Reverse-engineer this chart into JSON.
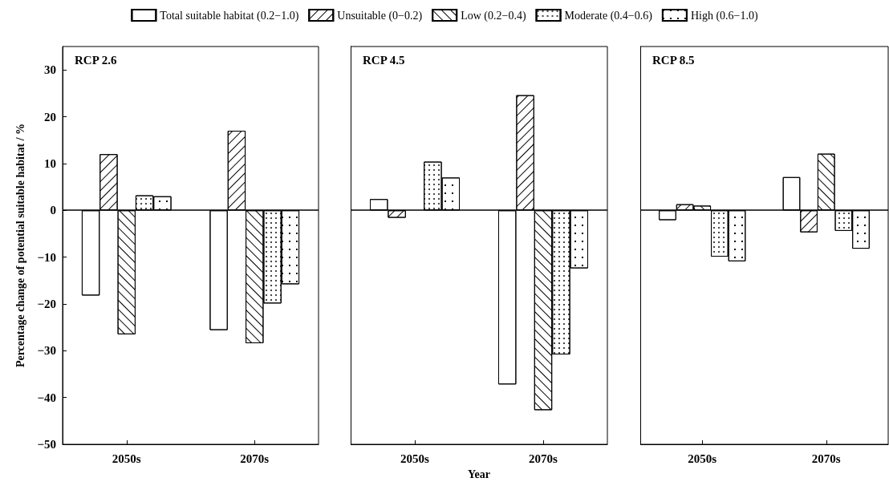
{
  "chart_data": [
    {
      "type": "bar",
      "title": "RCP 2.6",
      "ylabel": "Percentage change of potential suitable habitat / %",
      "categories": [
        "2050s",
        "2070s"
      ],
      "series": [
        {
          "name": "Total suitable habitat (0.2−1.0)",
          "color": "#ffffff",
          "values": [
            -18.2,
            -25.6
          ]
        },
        {
          "name": "Unsuitable (0−0.2)",
          "color": "#ffffff",
          "values": [
            12,
            17
          ]
        },
        {
          "name": "Low (0.2−0.4)",
          "color": "#ffffff",
          "values": [
            -26.5,
            -28.4
          ]
        },
        {
          "name": "Moderate (0.4−0.6)",
          "color": "#ffffff",
          "values": [
            3.2,
            -19.9
          ]
        },
        {
          "name": "High (0.6−1.0)",
          "color": "#ffffff",
          "values": [
            3,
            -15.8
          ]
        }
      ],
      "ylim": [
        -50,
        35
      ],
      "yticks": [
        -50,
        -40,
        -30,
        -20,
        -10,
        0,
        10,
        20,
        30
      ],
      "ref_lines": [
        {
          "axis": "y",
          "value": 0
        }
      ],
      "legend": "top",
      "grid": false
    },
    {
      "type": "bar",
      "title": "RCP 4.5",
      "xlabel": "Year",
      "categories": [
        "2050s",
        "2070s"
      ],
      "series": [
        {
          "color": "#ffffff",
          "values": [
            2.4,
            -37.2
          ]
        },
        {
          "color": "#ffffff",
          "values": [
            -1.6,
            24.6
          ]
        },
        {
          "color": "#ffffff",
          "values": [
            null,
            -42.7
          ]
        },
        {
          "color": "#ffffff",
          "values": [
            10.4,
            -30.8
          ]
        },
        {
          "color": "#ffffff",
          "values": [
            7,
            -12.4
          ]
        }
      ],
      "ylim": [
        -50,
        35
      ],
      "ref_lines": [
        {
          "axis": "y",
          "value": 0
        }
      ],
      "tick_labels": "x",
      "grid": false
    },
    {
      "type": "bar",
      "title": "RCP 8.5",
      "categories": [
        "2050s",
        "2070s"
      ],
      "series": [
        {
          "color": "#ffffff",
          "values": [
            -2.1,
            7.1
          ]
        },
        {
          "color": "#ffffff",
          "values": [
            1.3,
            -4.7
          ]
        },
        {
          "color": "#ffffff",
          "values": [
            1,
            12.1
          ]
        },
        {
          "color": "#ffffff",
          "values": [
            -9.9,
            -4.4
          ]
        },
        {
          "color": "#ffffff",
          "values": [
            -10.9,
            -8.2
          ]
        }
      ],
      "ylim": [
        -50,
        35
      ],
      "ref_lines": [
        {
          "axis": "y",
          "value": 0
        }
      ],
      "tick_labels": "x",
      "grid": false
    }
  ]
}
